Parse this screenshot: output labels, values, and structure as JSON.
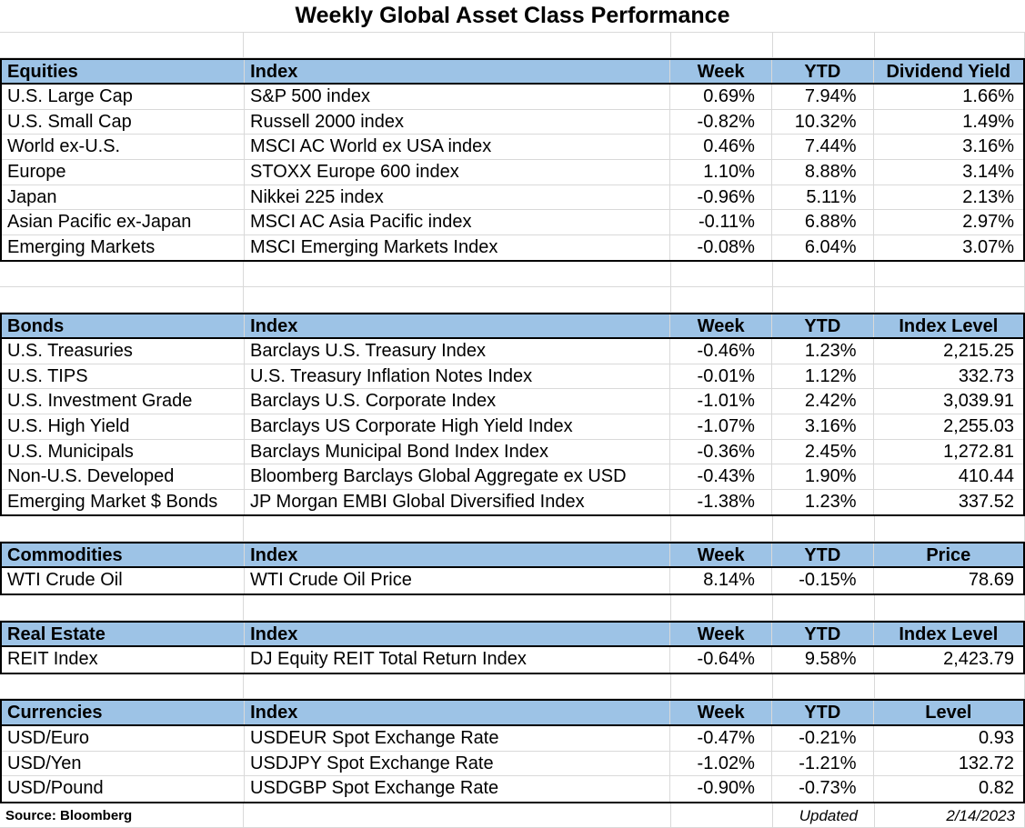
{
  "title": "Weekly Global Asset Class Performance",
  "colors": {
    "header_fill": "#9dc3e6",
    "gridline": "#d9d9d9",
    "border": "#000000"
  },
  "sections": [
    {
      "header": [
        "Equities",
        "Index",
        "Week",
        "YTD",
        "Dividend Yield"
      ],
      "blank_before": 1,
      "rows": [
        [
          "U.S. Large Cap",
          "S&P 500 index",
          "0.69%",
          "7.94%",
          "1.66%"
        ],
        [
          "U.S. Small Cap",
          "Russell 2000 index",
          "-0.82%",
          "10.32%",
          "1.49%"
        ],
        [
          "World ex-U.S.",
          "MSCI AC World ex USA index",
          "0.46%",
          "7.44%",
          "3.16%"
        ],
        [
          "Europe",
          "STOXX Europe 600 index",
          "1.10%",
          "8.88%",
          "3.14%"
        ],
        [
          "Japan",
          "Nikkei 225 index",
          "-0.96%",
          "5.11%",
          "2.13%"
        ],
        [
          "Asian Pacific ex-Japan",
          "MSCI AC Asia Pacific index",
          "-0.11%",
          "6.88%",
          "2.97%"
        ],
        [
          "Emerging Markets",
          "MSCI Emerging Markets Index",
          "-0.08%",
          "6.04%",
          "3.07%"
        ]
      ]
    },
    {
      "header": [
        "Bonds",
        "Index",
        "Week",
        "YTD",
        "Index Level"
      ],
      "blank_before": 2,
      "rows": [
        [
          "U.S. Treasuries",
          "Barclays U.S. Treasury Index",
          "-0.46%",
          "1.23%",
          "2,215.25"
        ],
        [
          "U.S. TIPS",
          "U.S. Treasury Inflation Notes Index",
          "-0.01%",
          "1.12%",
          "332.73"
        ],
        [
          "U.S. Investment Grade",
          "Barclays U.S. Corporate Index",
          "-1.01%",
          "2.42%",
          "3,039.91"
        ],
        [
          "U.S. High Yield",
          "Barclays US Corporate High Yield Index",
          "-1.07%",
          "3.16%",
          "2,255.03"
        ],
        [
          "U.S. Municipals",
          "Barclays Municipal Bond Index Index",
          "-0.36%",
          "2.45%",
          "1,272.81"
        ],
        [
          "Non-U.S. Developed",
          "Bloomberg Barclays Global Aggregate ex USD",
          "-0.43%",
          "1.90%",
          "410.44"
        ],
        [
          "Emerging Market $ Bonds",
          "JP Morgan EMBI Global Diversified Index",
          "-1.38%",
          "1.23%",
          "337.52"
        ]
      ]
    },
    {
      "header": [
        "Commodities",
        "Index",
        "Week",
        "YTD",
        "Price"
      ],
      "blank_before": 1,
      "rows": [
        [
          "WTI Crude Oil",
          "WTI Crude Oil Price",
          "8.14%",
          "-0.15%",
          "78.69"
        ]
      ]
    },
    {
      "header": [
        "Real Estate",
        "Index",
        "Week",
        "YTD",
        "Index Level"
      ],
      "blank_before": 1,
      "rows": [
        [
          "REIT Index",
          "DJ Equity REIT Total Return Index",
          "-0.64%",
          "9.58%",
          "2,423.79"
        ]
      ]
    },
    {
      "header": [
        "Currencies",
        "Index",
        "Week",
        "YTD",
        "Level"
      ],
      "blank_before": 1,
      "rows": [
        [
          "USD/Euro",
          "USDEUR Spot Exchange Rate",
          "-0.47%",
          "-0.21%",
          "0.93"
        ],
        [
          "USD/Yen",
          "USDJPY Spot Exchange Rate",
          "-1.02%",
          "-1.21%",
          "132.72"
        ],
        [
          "USD/Pound",
          "USDGBP Spot Exchange Rate",
          "-0.90%",
          "-0.73%",
          "0.82"
        ]
      ]
    }
  ],
  "footer": {
    "source": "Source: Bloomberg",
    "updated_label": "Updated",
    "updated_date": "2/14/2023"
  }
}
